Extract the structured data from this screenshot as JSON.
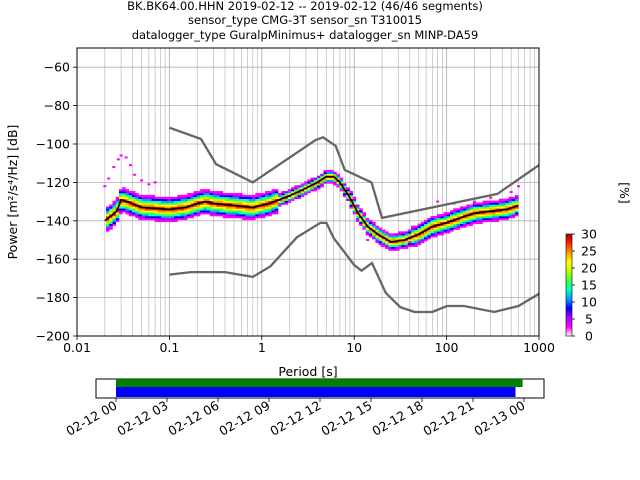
{
  "title_lines": [
    "BK.BK64.00.HHN   2019-02-12 -- 2019-02-12  (46/46 segments)",
    "sensor_type CMG-3T sensor_sn T310015",
    "datalogger_type GuralpMinimus+ datalogger_sn MINP-DA59"
  ],
  "colors": {
    "noise_model": "#666666",
    "mode": "#000000",
    "grid": "#b0b0b0",
    "coverage_data": "#0000ff",
    "coverage_gaps": "#008000",
    "colormap": [
      "#ffffff",
      "#ff00ff",
      "#aa00ff",
      "#0000ff",
      "#00a0ff",
      "#00ffc0",
      "#40ff40",
      "#c0ff00",
      "#ffff00",
      "#ff9900",
      "#ff2200",
      "#aa0000"
    ]
  },
  "chart_data": {
    "type": "heatmap",
    "xlabel": "Period [s]",
    "ylabel": "Power [m²/s⁴/Hz] [dB]",
    "xscale": "log",
    "xlim": [
      0.01,
      1000
    ],
    "ylim": [
      -200,
      -50
    ],
    "x_ticks": [
      0.01,
      0.1,
      1,
      10,
      100,
      1000
    ],
    "x_tick_labels": [
      "0.01",
      "0.1",
      "1",
      "10",
      "100",
      "1000"
    ],
    "y_ticks": [
      -200,
      -180,
      -160,
      -140,
      -120,
      -100,
      -80,
      -60
    ],
    "y_tick_labels": [
      "−200",
      "−180",
      "−160",
      "−140",
      "−120",
      "−100",
      "−80",
      "−60"
    ],
    "grid": true,
    "colorbar": {
      "label": "[%]",
      "range": [
        0,
        30
      ],
      "ticks": [
        0,
        5,
        10,
        15,
        20,
        25,
        30
      ]
    },
    "nhnm": [
      [
        0.1,
        -91.5
      ],
      [
        0.22,
        -97.4
      ],
      [
        0.32,
        -110.5
      ],
      [
        0.8,
        -120
      ],
      [
        3.8,
        -98
      ],
      [
        4.6,
        -96.5
      ],
      [
        6.3,
        -101
      ],
      [
        7.9,
        -113.5
      ],
      [
        15.4,
        -120
      ],
      [
        20,
        -138.5
      ],
      [
        354.8,
        -126
      ],
      [
        1000,
        -111
      ]
    ],
    "nlnm": [
      [
        0.1,
        -168
      ],
      [
        0.17,
        -166.7
      ],
      [
        0.4,
        -166.7
      ],
      [
        0.8,
        -169.2
      ],
      [
        1.24,
        -163.7
      ],
      [
        2.4,
        -148.6
      ],
      [
        4.3,
        -141.1
      ],
      [
        5,
        -141.1
      ],
      [
        6,
        -149
      ],
      [
        10,
        -163
      ],
      [
        12,
        -166
      ],
      [
        15.6,
        -162
      ],
      [
        21.9,
        -177.5
      ],
      [
        31.6,
        -185
      ],
      [
        45,
        -187.5
      ],
      [
        70,
        -187.5
      ],
      [
        101,
        -184.4
      ],
      [
        154,
        -184.4
      ],
      [
        328,
        -187.5
      ],
      [
        600,
        -184.4
      ],
      [
        1000,
        -178
      ]
    ],
    "mode": [
      [
        0.02,
        -140
      ],
      [
        0.024,
        -137
      ],
      [
        0.027,
        -135
      ],
      [
        0.03,
        -129
      ],
      [
        0.035,
        -130
      ],
      [
        0.05,
        -133
      ],
      [
        0.1,
        -134
      ],
      [
        0.15,
        -133
      ],
      [
        0.2,
        -131
      ],
      [
        0.25,
        -130
      ],
      [
        0.3,
        -131
      ],
      [
        0.5,
        -132
      ],
      [
        0.8,
        -133
      ],
      [
        1.2,
        -131
      ],
      [
        2,
        -127
      ],
      [
        3,
        -123
      ],
      [
        4,
        -120
      ],
      [
        5,
        -117
      ],
      [
        6,
        -117
      ],
      [
        7,
        -120
      ],
      [
        9,
        -128
      ],
      [
        11,
        -136
      ],
      [
        14,
        -143
      ],
      [
        18,
        -147
      ],
      [
        25,
        -151
      ],
      [
        35,
        -150
      ],
      [
        50,
        -147
      ],
      [
        70,
        -143
      ],
      [
        100,
        -141
      ],
      [
        150,
        -138
      ],
      [
        200,
        -136
      ],
      [
        300,
        -135
      ],
      [
        450,
        -134
      ],
      [
        600,
        -132
      ]
    ],
    "outliers": [
      [
        0.02,
        -122
      ],
      [
        0.022,
        -118
      ],
      [
        0.025,
        -112
      ],
      [
        0.028,
        -108
      ],
      [
        0.03,
        -106
      ],
      [
        0.034,
        -107
      ],
      [
        0.038,
        -111
      ],
      [
        0.042,
        -116
      ],
      [
        0.05,
        -119
      ],
      [
        0.06,
        -121
      ],
      [
        0.07,
        -120
      ],
      [
        14,
        -150
      ],
      [
        20,
        -153
      ],
      [
        30,
        -155
      ],
      [
        40,
        -151
      ],
      [
        80,
        -130
      ],
      [
        120,
        -131
      ],
      [
        200,
        -130
      ],
      [
        300,
        -128
      ],
      [
        500,
        -125
      ],
      [
        600,
        -122
      ]
    ],
    "coverage": {
      "xlim": [
        "2019-02-12 00",
        "2019-02-13 00"
      ],
      "tick_labels": [
        "02-12 00",
        "02-12 03",
        "02-12 06",
        "02-12 09",
        "02-12 12",
        "02-12 15",
        "02-12 18",
        "02-12 21",
        "02-13 00"
      ],
      "data_end": "2019-02-12 23:30",
      "gaps_end": "2019-02-12 23:55"
    }
  }
}
